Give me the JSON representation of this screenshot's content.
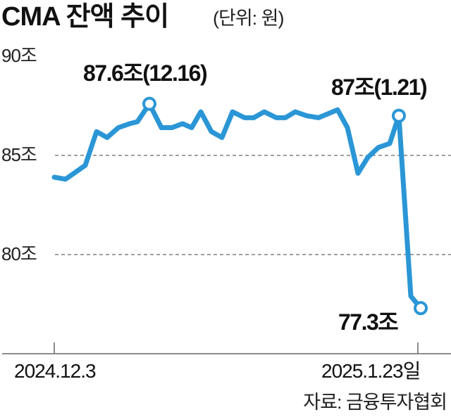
{
  "header": {
    "title": "CMA 잔액 추이",
    "unit": "(단위: 원)"
  },
  "y_axis": {
    "ticks": [
      "90조",
      "85조",
      "80조"
    ]
  },
  "x_axis": {
    "start_label": "2024.12.3",
    "end_label": "2025.1.23일"
  },
  "annotations": {
    "peak1": "87.6조(12.16)",
    "peak2": "87조(1.21)",
    "last": "77.3조"
  },
  "source": "자료: 금융투자협회",
  "colors": {
    "line": "#2b96d6",
    "grid": "#666666",
    "axis": "#666666"
  },
  "chart_data": {
    "type": "line",
    "title": "CMA 잔액 추이",
    "subtitle": "(단위: 원)",
    "xlabel": "",
    "ylabel": "",
    "unit": "조 원",
    "ylim": [
      76,
      90
    ],
    "yticks": [
      80,
      85,
      90
    ],
    "ytick_labels": [
      "80조",
      "85조",
      "90조"
    ],
    "grid": "dashed horizontal at 80, 85",
    "x_start": "2024.12.3",
    "x_end": "2025.1.23",
    "x": [
      0,
      1,
      2,
      3,
      4,
      5,
      6,
      7,
      8,
      9,
      10,
      11,
      12,
      13,
      14,
      15,
      16,
      17,
      18,
      19,
      20,
      21,
      22,
      23,
      24,
      25,
      26,
      27,
      28,
      29,
      30,
      31,
      32,
      33
    ],
    "values": [
      83.9,
      83.8,
      84.5,
      86.2,
      85.9,
      86.4,
      86.6,
      86.7,
      87.6,
      86.4,
      86.4,
      86.6,
      86.4,
      87.2,
      86.2,
      85.9,
      87.2,
      86.9,
      86.9,
      87.2,
      86.9,
      86.9,
      87.2,
      87.0,
      86.9,
      87.3,
      86.4,
      84.1,
      84.9,
      85.4,
      85.6,
      87.0,
      77.9,
      77.3
    ],
    "annotations": [
      {
        "label": "87.6조(12.16)",
        "date": "12.16",
        "value": 87.6
      },
      {
        "label": "87조(1.21)",
        "date": "1.21",
        "value": 87.0
      },
      {
        "label": "77.3조",
        "date": "1.23",
        "value": 77.3
      }
    ],
    "source": "자료: 금융투자협회"
  }
}
